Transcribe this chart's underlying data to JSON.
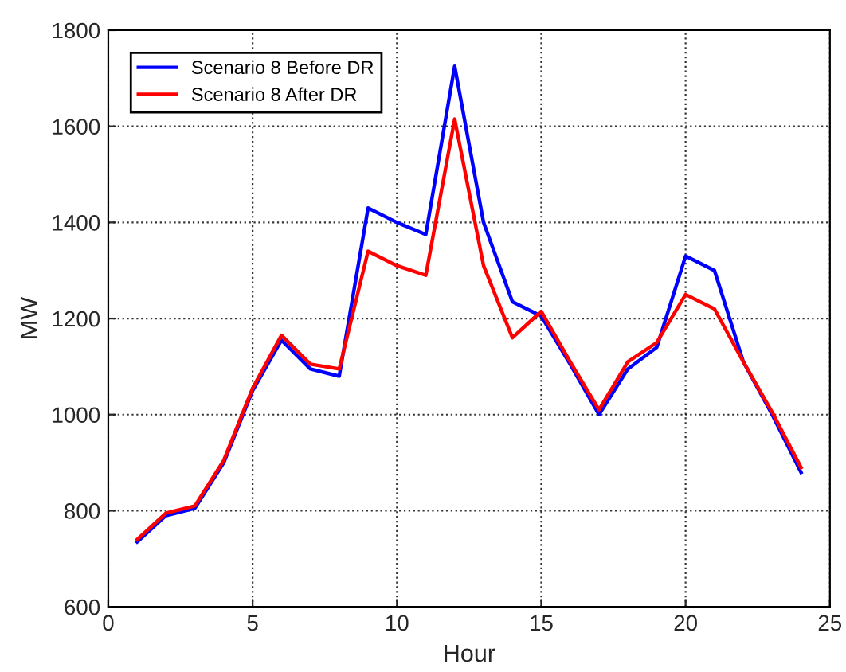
{
  "chart_data": {
    "type": "line",
    "xlabel": "Hour",
    "ylabel": "MW",
    "x": [
      1,
      2,
      3,
      4,
      5,
      6,
      7,
      8,
      9,
      10,
      11,
      12,
      13,
      14,
      15,
      16,
      17,
      18,
      19,
      20,
      21,
      22,
      23,
      24
    ],
    "series": [
      {
        "name": "Scenario 8 Before DR",
        "color": "#0000ff",
        "values": [
          735,
          790,
          805,
          900,
          1050,
          1155,
          1095,
          1080,
          1430,
          1400,
          1375,
          1725,
          1400,
          1235,
          1205,
          1105,
          1000,
          1095,
          1140,
          1330,
          1300,
          1110,
          1000,
          880
        ]
      },
      {
        "name": "Scenario 8 After DR",
        "color": "#ff0000",
        "values": [
          740,
          795,
          810,
          905,
          1055,
          1165,
          1105,
          1095,
          1340,
          1310,
          1290,
          1615,
          1310,
          1160,
          1215,
          1110,
          1010,
          1110,
          1150,
          1250,
          1220,
          1110,
          1005,
          890
        ]
      }
    ],
    "xlim": [
      0,
      25
    ],
    "xticks": [
      0,
      5,
      10,
      15,
      20,
      25
    ],
    "ylim": [
      600,
      1800
    ],
    "yticks": [
      600,
      800,
      1000,
      1200,
      1400,
      1600,
      1800
    ],
    "grid": true,
    "legend": "top left",
    "line_style": "solid",
    "marker": "none"
  }
}
